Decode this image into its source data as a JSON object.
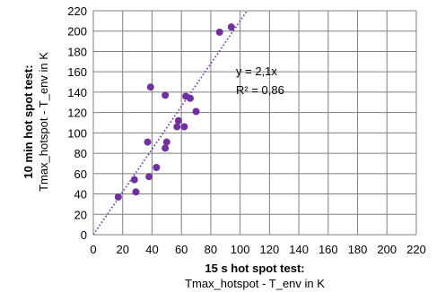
{
  "chart_data": {
    "type": "scatter",
    "xlabel": [
      "15 s hot spot test:",
      "Tmax_hotspot - T_env in K"
    ],
    "ylabel": [
      "10 min hot spot test:",
      "Tmax_hotspot  - T_env in K"
    ],
    "xlim": [
      0,
      220
    ],
    "ylim": [
      0,
      220
    ],
    "xticks": [
      0,
      20,
      40,
      60,
      80,
      100,
      120,
      140,
      160,
      180,
      200,
      220
    ],
    "yticks": [
      0,
      20,
      40,
      60,
      80,
      100,
      120,
      140,
      160,
      180,
      200,
      220
    ],
    "grid": true,
    "legend": "none",
    "colors": {
      "points": "#7030a0",
      "trendline": "#7030a0",
      "grid": "#808080"
    },
    "points": [
      {
        "x": 17,
        "y": 37
      },
      {
        "x": 28,
        "y": 54
      },
      {
        "x": 29,
        "y": 42
      },
      {
        "x": 37,
        "y": 91
      },
      {
        "x": 38,
        "y": 57
      },
      {
        "x": 39,
        "y": 145
      },
      {
        "x": 43,
        "y": 66
      },
      {
        "x": 49,
        "y": 85
      },
      {
        "x": 49,
        "y": 137
      },
      {
        "x": 50,
        "y": 91
      },
      {
        "x": 57,
        "y": 106
      },
      {
        "x": 58,
        "y": 112
      },
      {
        "x": 62,
        "y": 106
      },
      {
        "x": 63,
        "y": 136
      },
      {
        "x": 66,
        "y": 134
      },
      {
        "x": 70,
        "y": 121
      },
      {
        "x": 86,
        "y": 199
      },
      {
        "x": 94,
        "y": 204
      }
    ],
    "trendline": {
      "slope": 2.1,
      "style": "dotted"
    },
    "annotations": [
      "y = 2,1x",
      "R² = 0,86"
    ]
  }
}
